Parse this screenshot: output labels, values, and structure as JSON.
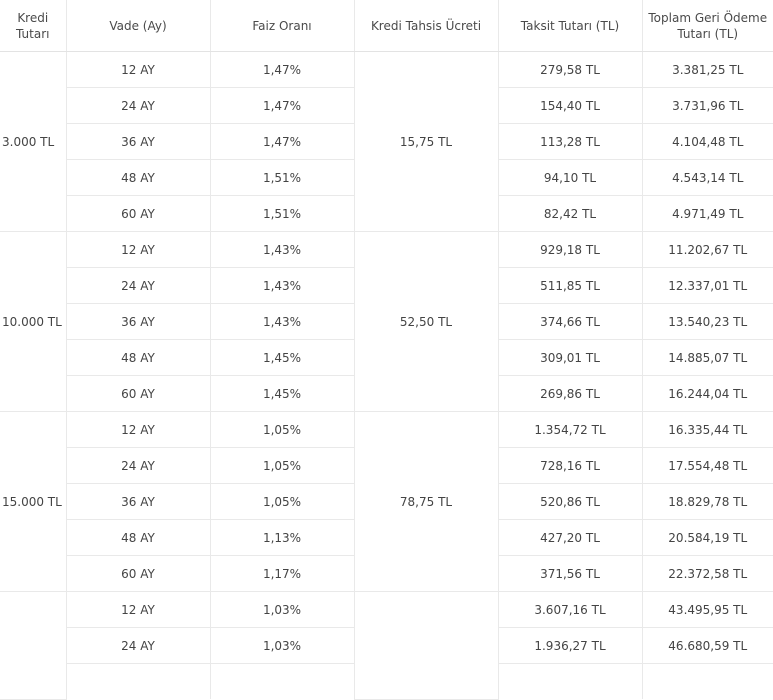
{
  "header": {
    "amount": "Kredi Tutarı",
    "term": "Vade (Ay)",
    "rate": "Faiz Oranı",
    "fee": "Kredi Tahsis Ücreti",
    "installment": "Taksit Tutarı (TL)",
    "total": "Toplam Geri Ödeme Tutarı (TL)"
  },
  "groups": [
    {
      "amount": "3.000 TL",
      "fee": "15,75 TL",
      "rows": [
        {
          "term": "12 AY",
          "rate": "1,47%",
          "installment": "279,58 TL",
          "total": "3.381,25 TL"
        },
        {
          "term": "24 AY",
          "rate": "1,47%",
          "installment": "154,40 TL",
          "total": "3.731,96 TL"
        },
        {
          "term": "36 AY",
          "rate": "1,47%",
          "installment": "113,28 TL",
          "total": "4.104,48 TL"
        },
        {
          "term": "48 AY",
          "rate": "1,51%",
          "installment": "94,10 TL",
          "total": "4.543,14 TL"
        },
        {
          "term": "60 AY",
          "rate": "1,51%",
          "installment": "82,42 TL",
          "total": "4.971,49 TL"
        }
      ]
    },
    {
      "amount": "10.000 TL",
      "fee": "52,50 TL",
      "rows": [
        {
          "term": "12 AY",
          "rate": "1,43%",
          "installment": "929,18 TL",
          "total": "11.202,67 TL"
        },
        {
          "term": "24 AY",
          "rate": "1,43%",
          "installment": "511,85 TL",
          "total": "12.337,01 TL"
        },
        {
          "term": "36 AY",
          "rate": "1,43%",
          "installment": "374,66 TL",
          "total": "13.540,23 TL"
        },
        {
          "term": "48 AY",
          "rate": "1,45%",
          "installment": "309,01 TL",
          "total": "14.885,07 TL"
        },
        {
          "term": "60 AY",
          "rate": "1,45%",
          "installment": "269,86 TL",
          "total": "16.244,04 TL"
        }
      ]
    },
    {
      "amount": "15.000 TL",
      "fee": "78,75 TL",
      "rows": [
        {
          "term": "12 AY",
          "rate": "1,05%",
          "installment": "1.354,72 TL",
          "total": "16.335,44 TL"
        },
        {
          "term": "24 AY",
          "rate": "1,05%",
          "installment": "728,16 TL",
          "total": "17.554,48 TL"
        },
        {
          "term": "36 AY",
          "rate": "1,05%",
          "installment": "520,86 TL",
          "total": "18.829,78 TL"
        },
        {
          "term": "48 AY",
          "rate": "1,13%",
          "installment": "427,20 TL",
          "total": "20.584,19 TL"
        },
        {
          "term": "60 AY",
          "rate": "1,17%",
          "installment": "371,56 TL",
          "total": "22.372,58 TL"
        }
      ]
    },
    {
      "amount": "",
      "fee": "",
      "rows": [
        {
          "term": "12 AY",
          "rate": "1,03%",
          "installment": "3.607,16 TL",
          "total": "43.495,95 TL"
        },
        {
          "term": "24 AY",
          "rate": "1,03%",
          "installment": "1.936,27 TL",
          "total": "46.680,59 TL"
        },
        {
          "term": "",
          "rate": "",
          "installment": "",
          "total": ""
        }
      ]
    }
  ]
}
